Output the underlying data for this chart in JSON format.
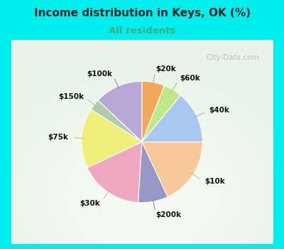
{
  "title": "Income distribution in Keys, OK (%)",
  "subtitle": "All residents",
  "title_color": "#222222",
  "subtitle_color": "#44aa77",
  "background_color": "#00eeee",
  "chart_bg": "#e8f5ee",
  "labels": [
    "$100k",
    "$150k",
    "$75k",
    "$30k",
    "$200k",
    "$10k",
    "$40k",
    "$60k",
    "$20k"
  ],
  "values": [
    13,
    3,
    16,
    17,
    8,
    18,
    14,
    5,
    6
  ],
  "colors": [
    "#b8a8d8",
    "#b0ccaa",
    "#eef07a",
    "#f0a8c0",
    "#9898c8",
    "#f8c898",
    "#a8c8f0",
    "#c0e888",
    "#f0a858"
  ],
  "label_line_colors": [
    "#9090bb",
    "#aaccaa",
    "#cccc66",
    "#ddaacc",
    "#8888aa",
    "#ddbb88",
    "#99bbdd",
    "#aacc88",
    "#ddaa66"
  ],
  "watermark": "City-Data.com",
  "startangle": 90
}
